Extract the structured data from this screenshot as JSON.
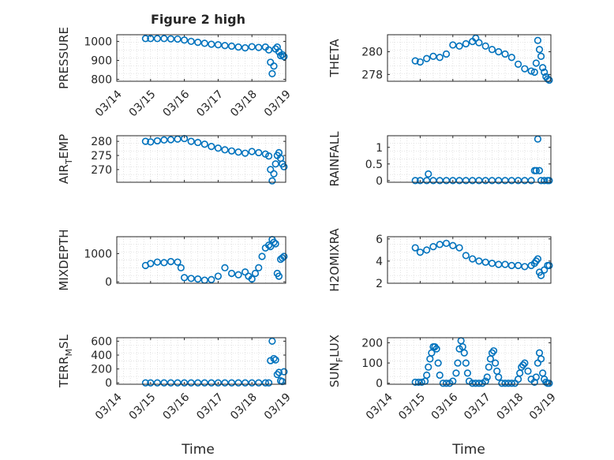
{
  "figure": {
    "title": "Figure 2 high",
    "xlabel": "Time"
  },
  "chart_data": [
    {
      "type": "scatter",
      "id": "pressure",
      "ylabel": "PRESSURE",
      "yticks": [
        800,
        900,
        1000
      ],
      "ylim": [
        790,
        1035
      ],
      "xticks": [
        "03/14",
        "03/15",
        "03/16",
        "03/17",
        "03/18",
        "03/19"
      ],
      "xlim": [
        0,
        5
      ],
      "x": [
        0.85,
        1.0,
        1.2,
        1.4,
        1.6,
        1.8,
        2.0,
        2.2,
        2.4,
        2.6,
        2.8,
        3.0,
        3.2,
        3.4,
        3.6,
        3.8,
        4.0,
        4.2,
        4.4,
        4.5,
        4.55,
        4.6,
        4.65,
        4.7,
        4.75,
        4.8,
        4.85,
        4.9,
        4.95
      ],
      "y": [
        1015,
        1015,
        1015,
        1015,
        1013,
        1012,
        1007,
        1000,
        995,
        990,
        985,
        982,
        978,
        975,
        970,
        966,
        972,
        968,
        970,
        955,
        890,
        830,
        870,
        960,
        970,
        945,
        925,
        930,
        920
      ]
    },
    {
      "type": "scatter",
      "id": "theta",
      "ylabel": "THETA",
      "yticks": [
        278,
        280
      ],
      "ylim": [
        277.4,
        281.5
      ],
      "xticks": [],
      "xlim": [
        0,
        5
      ],
      "x": [
        0.85,
        1.0,
        1.2,
        1.4,
        1.6,
        1.8,
        2.0,
        2.2,
        2.4,
        2.6,
        2.7,
        2.8,
        3.0,
        3.2,
        3.4,
        3.6,
        3.8,
        4.0,
        4.2,
        4.4,
        4.5,
        4.55,
        4.6,
        4.65,
        4.7,
        4.75,
        4.8,
        4.85,
        4.9,
        4.95
      ],
      "y": [
        279.2,
        279.1,
        279.4,
        279.6,
        279.5,
        279.8,
        280.6,
        280.5,
        280.7,
        280.9,
        281.2,
        280.8,
        280.5,
        280.2,
        280.0,
        279.8,
        279.5,
        278.9,
        278.5,
        278.3,
        278.2,
        279.0,
        281.0,
        280.2,
        279.6,
        278.6,
        278.2,
        277.8,
        277.6,
        277.5
      ]
    },
    {
      "type": "scatter",
      "id": "air_temp",
      "ylabel": "AIR_TEMP",
      "yticks": [
        270,
        275,
        280
      ],
      "ylim": [
        265.5,
        282
      ],
      "xticks": [],
      "xlim": [
        0,
        5
      ],
      "x": [
        0.85,
        1.0,
        1.2,
        1.4,
        1.6,
        1.8,
        2.0,
        2.2,
        2.4,
        2.6,
        2.8,
        3.0,
        3.2,
        3.4,
        3.6,
        3.8,
        4.0,
        4.2,
        4.4,
        4.5,
        4.55,
        4.6,
        4.65,
        4.7,
        4.75,
        4.8,
        4.85,
        4.9,
        4.95
      ],
      "y": [
        280.0,
        279.8,
        280.2,
        280.5,
        280.6,
        280.8,
        281.0,
        280.0,
        279.6,
        279.0,
        278.2,
        277.6,
        277.0,
        276.6,
        276.2,
        275.8,
        276.4,
        276.0,
        275.5,
        274.8,
        270.0,
        266.0,
        268.5,
        272.0,
        275.0,
        276.0,
        274.0,
        272.0,
        271.0
      ]
    },
    {
      "type": "scatter",
      "id": "rainfall",
      "ylabel": "RAINFALL",
      "yticks": [
        0,
        0.5,
        1
      ],
      "ylim": [
        -0.05,
        1.35
      ],
      "xticks": [],
      "xlim": [
        0,
        5
      ],
      "x": [
        0.85,
        1.0,
        1.2,
        1.25,
        1.4,
        1.6,
        1.8,
        2.0,
        2.2,
        2.4,
        2.6,
        2.8,
        3.0,
        3.2,
        3.4,
        3.6,
        3.8,
        4.0,
        4.2,
        4.4,
        4.5,
        4.55,
        4.6,
        4.65,
        4.7,
        4.8,
        4.9,
        4.95
      ],
      "y": [
        0,
        0,
        0,
        0.2,
        0,
        0,
        0,
        0,
        0,
        0,
        0,
        0,
        0,
        0,
        0,
        0,
        0,
        0,
        0,
        0,
        0.3,
        0.3,
        1.25,
        0.3,
        0,
        0,
        0,
        0
      ]
    },
    {
      "type": "scatter",
      "id": "mixdepth",
      "ylabel": "MIXDEPTH",
      "yticks": [
        0,
        1000
      ],
      "ylim": [
        -50,
        1600
      ],
      "xticks": [],
      "xlim": [
        0,
        5
      ],
      "x": [
        0.85,
        1.0,
        1.2,
        1.4,
        1.6,
        1.8,
        1.9,
        2.0,
        2.2,
        2.4,
        2.6,
        2.8,
        3.0,
        3.2,
        3.4,
        3.6,
        3.8,
        3.9,
        4.0,
        4.1,
        4.2,
        4.3,
        4.4,
        4.5,
        4.55,
        4.6,
        4.65,
        4.7,
        4.75,
        4.8,
        4.85,
        4.9,
        4.95
      ],
      "y": [
        580,
        650,
        700,
        680,
        720,
        700,
        500,
        150,
        120,
        100,
        60,
        80,
        200,
        500,
        300,
        250,
        350,
        200,
        100,
        300,
        500,
        900,
        1200,
        1300,
        1250,
        1500,
        1400,
        1350,
        300,
        200,
        800,
        850,
        900
      ]
    },
    {
      "type": "scatter",
      "id": "h2omixra",
      "ylabel": "H2OMIXRA",
      "yticks": [
        2,
        4,
        6
      ],
      "ylim": [
        2,
        6.2
      ],
      "xticks": [],
      "xlim": [
        0,
        5
      ],
      "x": [
        0.85,
        1.0,
        1.2,
        1.4,
        1.6,
        1.8,
        2.0,
        2.2,
        2.4,
        2.6,
        2.8,
        3.0,
        3.2,
        3.4,
        3.6,
        3.8,
        4.0,
        4.2,
        4.4,
        4.5,
        4.55,
        4.6,
        4.65,
        4.7,
        4.8,
        4.9,
        4.95
      ],
      "y": [
        5.2,
        4.8,
        5.0,
        5.3,
        5.5,
        5.6,
        5.4,
        5.2,
        4.5,
        4.2,
        4.0,
        3.9,
        3.8,
        3.7,
        3.7,
        3.6,
        3.6,
        3.5,
        3.6,
        3.8,
        4.0,
        4.2,
        3.0,
        2.7,
        3.2,
        3.6,
        3.6
      ]
    },
    {
      "type": "scatter",
      "id": "terr_msl",
      "ylabel": "TERR_MSL",
      "yticks": [
        0,
        200,
        400,
        600
      ],
      "ylim": [
        -20,
        650
      ],
      "xticks": [
        "03/14",
        "03/15",
        "03/16",
        "03/17",
        "03/18",
        "03/19"
      ],
      "xlim": [
        0,
        5
      ],
      "x": [
        0.85,
        1.0,
        1.2,
        1.4,
        1.6,
        1.8,
        2.0,
        2.2,
        2.4,
        2.6,
        2.8,
        3.0,
        3.2,
        3.4,
        3.6,
        3.8,
        4.0,
        4.2,
        4.4,
        4.5,
        4.55,
        4.6,
        4.65,
        4.7,
        4.75,
        4.8,
        4.85,
        4.9,
        4.95
      ],
      "y": [
        0,
        0,
        0,
        0,
        0,
        0,
        0,
        0,
        0,
        0,
        0,
        0,
        0,
        0,
        0,
        0,
        0,
        0,
        0,
        0,
        320,
        600,
        350,
        330,
        120,
        150,
        30,
        20,
        160
      ]
    },
    {
      "type": "scatter",
      "id": "sun_flux",
      "ylabel": "SUN_FLUX",
      "yticks": [
        0,
        100,
        200
      ],
      "ylim": [
        -5,
        225
      ],
      "xticks": [
        "03/14",
        "03/15",
        "03/16",
        "03/17",
        "03/18",
        "03/19"
      ],
      "xlim": [
        0,
        5
      ],
      "x": [
        0.85,
        0.95,
        1.05,
        1.15,
        1.2,
        1.25,
        1.3,
        1.35,
        1.4,
        1.45,
        1.5,
        1.55,
        1.6,
        1.7,
        1.8,
        1.9,
        2.0,
        2.1,
        2.15,
        2.2,
        2.25,
        2.3,
        2.35,
        2.4,
        2.45,
        2.5,
        2.6,
        2.7,
        2.8,
        2.9,
        3.0,
        3.05,
        3.1,
        3.15,
        3.2,
        3.25,
        3.3,
        3.35,
        3.4,
        3.5,
        3.6,
        3.7,
        3.8,
        3.9,
        4.0,
        4.05,
        4.1,
        4.15,
        4.2,
        4.3,
        4.4,
        4.5,
        4.55,
        4.6,
        4.65,
        4.7,
        4.75,
        4.8,
        4.85,
        4.9,
        4.95
      ],
      "y": [
        5,
        5,
        5,
        10,
        40,
        80,
        120,
        150,
        180,
        180,
        170,
        100,
        40,
        0,
        0,
        0,
        10,
        50,
        100,
        170,
        210,
        180,
        150,
        100,
        50,
        10,
        0,
        0,
        0,
        0,
        10,
        30,
        80,
        120,
        150,
        160,
        100,
        60,
        30,
        0,
        0,
        0,
        0,
        0,
        20,
        50,
        80,
        90,
        100,
        60,
        20,
        5,
        30,
        100,
        150,
        120,
        50,
        20,
        5,
        0,
        0
      ]
    }
  ]
}
